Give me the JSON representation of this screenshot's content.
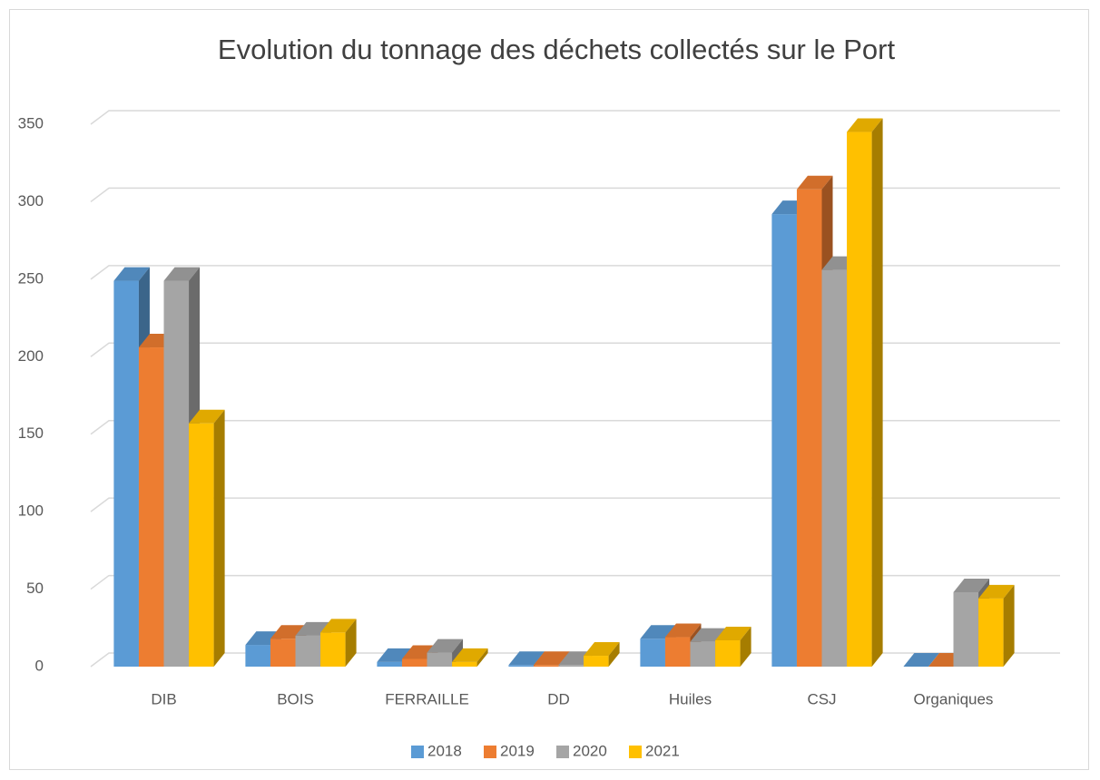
{
  "chart_data": {
    "type": "bar3d",
    "title": "Evolution du tonnage des déchets collectés sur le Port",
    "categories": [
      "DIB",
      "BOIS",
      "FERRAILLE",
      "DD",
      "Huiles",
      "CSJ",
      "Organiques"
    ],
    "series": [
      {
        "name": "2018",
        "color": "#5b9bd5",
        "values": [
          249,
          14,
          3,
          1,
          18,
          292,
          0
        ]
      },
      {
        "name": "2019",
        "color": "#ed7d31",
        "values": [
          206,
          18,
          5,
          1,
          19,
          308,
          0
        ]
      },
      {
        "name": "2020",
        "color": "#a5a5a5",
        "values": [
          249,
          20,
          9,
          1,
          16,
          256,
          48
        ]
      },
      {
        "name": "2021",
        "color": "#ffc000",
        "values": [
          157,
          22,
          3,
          7,
          17,
          345,
          44
        ]
      }
    ],
    "ylim": [
      0,
      350
    ],
    "yticks": [
      0,
      50,
      100,
      150,
      200,
      250,
      300,
      350
    ],
    "grid": true,
    "legend": "bottom"
  }
}
